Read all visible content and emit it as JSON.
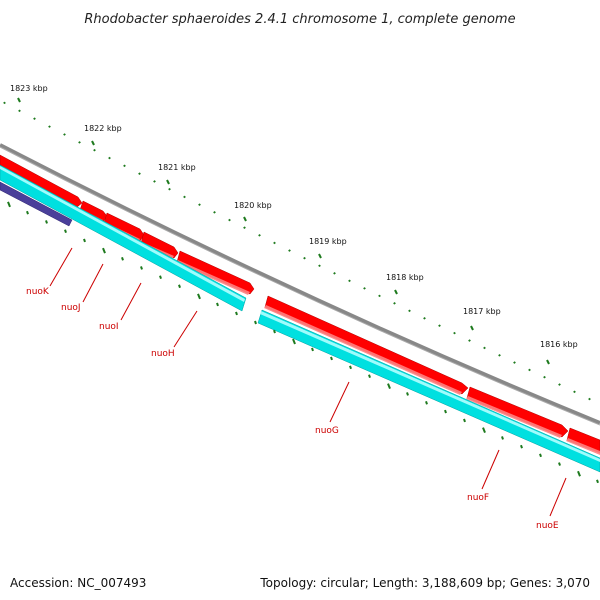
{
  "title": "Rhodobacter sphaeroides 2.4.1 chromosome 1, complete genome",
  "footer": {
    "accession": "Accession: NC_007493",
    "topology": "Topology: circular; Length: 3,188,609 bp; Genes: 3,070"
  },
  "colors": {
    "backbone": "#888888",
    "forward_gene": "#ff0000",
    "reverse_gene": "#00e0e0",
    "misc_feature": "#4a3f9a",
    "tick_major": "#1e7a1e",
    "label": "#cc0000"
  },
  "kbp_labels": [
    "1823 kbp",
    "1822 kbp",
    "1821 kbp",
    "1820 kbp",
    "1819 kbp",
    "1818 kbp",
    "1817 kbp",
    "1816 kbp"
  ],
  "genes": [
    {
      "name": "nuoK",
      "strand": "forward"
    },
    {
      "name": "nuoJ",
      "strand": "forward"
    },
    {
      "name": "nuoI",
      "strand": "forward"
    },
    {
      "name": "nuoH",
      "strand": "forward"
    },
    {
      "name": "nuoG",
      "strand": "forward"
    },
    {
      "name": "nuoF",
      "strand": "forward"
    },
    {
      "name": "nuoE",
      "strand": "forward"
    }
  ]
}
